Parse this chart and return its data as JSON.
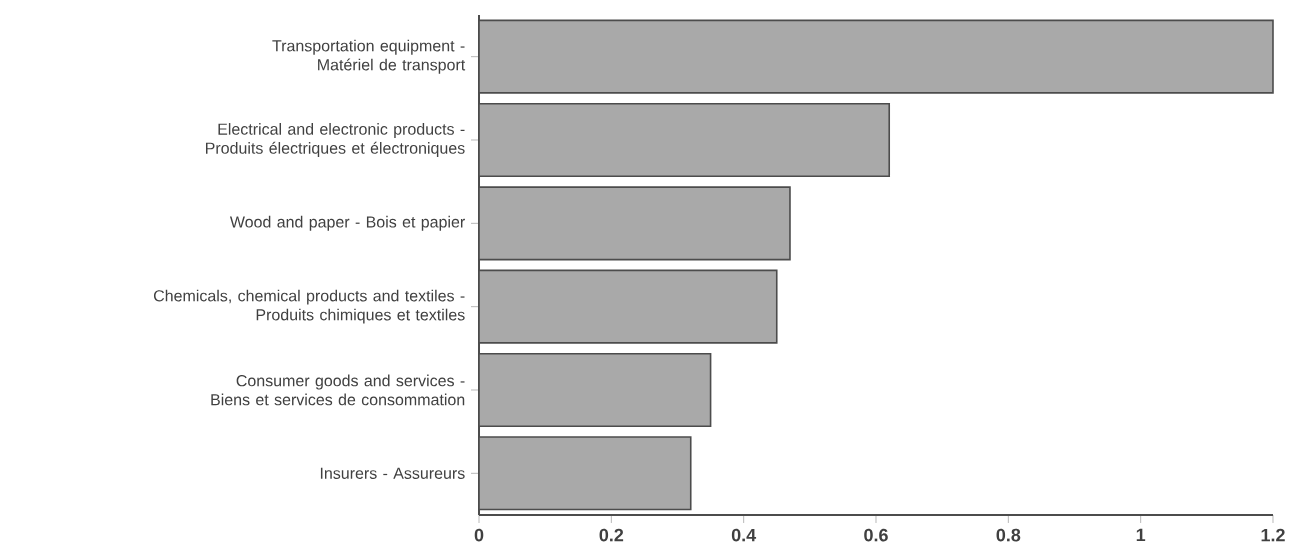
{
  "chart_data": {
    "type": "bar",
    "orientation": "horizontal",
    "categories": [
      "Transportation equipment -\nMatériel de transport",
      "Electrical and electronic products -\nProduits électriques et électroniques",
      "Wood and paper - Bois et papier",
      "Chemicals, chemical products and textiles -\nProduits chimiques et textiles",
      "Consumer goods and services -\nBiens et services de consommation",
      "Insurers - Assureurs"
    ],
    "values": [
      1.2,
      0.62,
      0.47,
      0.45,
      0.35,
      0.32
    ],
    "color": "#a9a9a9",
    "xlim": [
      0,
      1.2
    ],
    "xticks": [
      0,
      0.2,
      0.4,
      0.6,
      0.8,
      1,
      1.2
    ]
  }
}
